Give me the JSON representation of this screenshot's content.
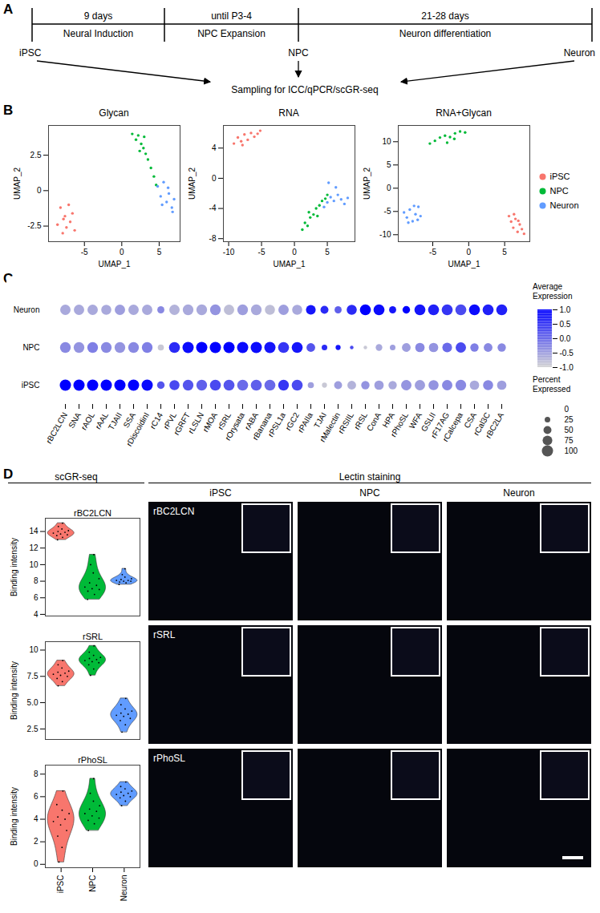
{
  "panel_labels": [
    "A",
    "B",
    "C",
    "D"
  ],
  "timeline": {
    "durations": [
      "9 days",
      "until P3-4",
      "21-28 days"
    ],
    "stages": [
      "Neural Induction",
      "NPC Expansion",
      "Neuron differentiation"
    ],
    "cells": [
      "iPSC",
      "NPC",
      "Neuron"
    ],
    "sampling": "Sampling for ICC/qPCR/scGR-seq"
  },
  "chart_data": [
    {
      "type": "scatter",
      "title": "Glycan",
      "x_label": "UMAP_1",
      "y_label": "UMAP_2",
      "xlim": [
        -9.8,
        7.8
      ],
      "ylim": [
        -3.6,
        4.6
      ],
      "xticks": [
        -5,
        0,
        5
      ],
      "yticks": [
        -2.5,
        0,
        2.5
      ],
      "series": [
        {
          "name": "iPSC",
          "color": "#F8766D",
          "x": [
            -8.6,
            -8.2,
            -7.9,
            -7.6,
            -7.4,
            -7.1,
            -6.9,
            -6.6,
            -6.3,
            -7.8
          ],
          "y": [
            -2.4,
            -1.2,
            -3.0,
            -1.8,
            -2.6,
            -1.0,
            -2.2,
            -1.6,
            -2.8,
            -2.0
          ]
        },
        {
          "name": "NPC",
          "color": "#00BA38",
          "x": [
            1.4,
            1.9,
            2.2,
            2.6,
            2.9,
            3.2,
            3.5,
            3.9,
            4.3,
            2.4,
            3.0,
            4.6
          ],
          "y": [
            4.0,
            3.6,
            3.9,
            3.3,
            3.0,
            2.6,
            2.2,
            1.6,
            1.0,
            2.8,
            3.8,
            0.4
          ]
        },
        {
          "name": "Neuron",
          "color": "#619CFF",
          "x": [
            4.8,
            5.2,
            5.6,
            6.0,
            6.3,
            6.7,
            7.0,
            5.4,
            6.2,
            6.8
          ],
          "y": [
            0.3,
            -0.4,
            0.6,
            -0.8,
            -0.2,
            -1.2,
            -0.6,
            -1.0,
            0.2,
            -1.5
          ]
        }
      ]
    },
    {
      "type": "scatter",
      "title": "RNA",
      "x_label": "UMAP_1",
      "y_label": "UMAP_2",
      "xlim": [
        -10.8,
        9.2
      ],
      "ylim": [
        -8.4,
        7.0
      ],
      "xticks": [
        -10,
        -5,
        0,
        5
      ],
      "yticks": [
        -8,
        -4,
        0,
        4
      ],
      "series": [
        {
          "name": "iPSC",
          "color": "#F8766D",
          "x": [
            -9.2,
            -8.6,
            -8.1,
            -7.6,
            -7.1,
            -6.6,
            -6.1,
            -5.6,
            -5.2,
            -7.9
          ],
          "y": [
            4.6,
            5.4,
            4.9,
            5.8,
            5.1,
            6.0,
            5.5,
            5.9,
            6.3,
            4.4
          ]
        },
        {
          "name": "NPC",
          "color": "#00BA38",
          "x": [
            1.2,
            1.6,
            2.0,
            2.4,
            2.9,
            3.3,
            3.8,
            4.2,
            4.7,
            2.2,
            3.5,
            5.0
          ],
          "y": [
            -6.8,
            -5.9,
            -6.3,
            -5.2,
            -4.8,
            -4.0,
            -3.6,
            -3.0,
            -2.7,
            -4.5,
            -5.0,
            -2.2
          ]
        },
        {
          "name": "Neuron",
          "color": "#619CFF",
          "x": [
            4.5,
            5.0,
            5.5,
            6.0,
            6.6,
            7.1,
            7.6,
            8.1,
            5.2,
            6.3
          ],
          "y": [
            -3.8,
            -3.2,
            -2.5,
            -3.0,
            -2.2,
            -2.8,
            -3.4,
            -2.6,
            -0.6,
            -1.2
          ]
        }
      ]
    },
    {
      "type": "scatter",
      "title": "RNA+Glycan",
      "x_label": "UMAP_1",
      "y_label": "UMAP_2",
      "xlim": [
        -9.8,
        8.5
      ],
      "ylim": [
        -11.5,
        13.5
      ],
      "xticks": [
        -5,
        0,
        5
      ],
      "yticks": [
        -10,
        -5,
        0,
        5,
        10
      ],
      "legend": "right",
      "series": [
        {
          "name": "iPSC",
          "color": "#F8766D",
          "x": [
            5.6,
            5.9,
            6.2,
            6.5,
            6.8,
            7.1,
            7.4,
            7.7,
            6.3,
            6.9
          ],
          "y": [
            -6.0,
            -7.2,
            -8.5,
            -6.6,
            -9.4,
            -7.8,
            -8.8,
            -9.8,
            -5.6,
            -7.0
          ]
        },
        {
          "name": "NPC",
          "color": "#00BA38",
          "x": [
            -5.4,
            -4.7,
            -4.0,
            -3.3,
            -2.6,
            -1.9,
            -1.2,
            -0.5,
            -3.0,
            -2.0
          ],
          "y": [
            9.6,
            10.2,
            10.9,
            11.3,
            11.0,
            11.8,
            12.2,
            12.0,
            9.8,
            10.6
          ]
        },
        {
          "name": "Neuron",
          "color": "#619CFF",
          "x": [
            -9.0,
            -8.6,
            -8.2,
            -7.8,
            -7.4,
            -7.0,
            -6.7,
            -8.4,
            -7.6,
            -7.1
          ],
          "y": [
            -5.2,
            -6.3,
            -4.6,
            -7.1,
            -5.6,
            -4.0,
            -6.0,
            -7.4,
            -3.8,
            -6.8
          ]
        }
      ]
    },
    {
      "type": "dot",
      "categories": [
        "rBC2LCN",
        "SNA",
        "rAOL",
        "rAAL",
        "TJAII",
        "SSA",
        "rDiscoidinI",
        "rC14",
        "rPVL",
        "rGRFT",
        "rLSLN",
        "rMOA",
        "rSRL",
        "rOrysata",
        "rABA",
        "rBanana",
        "rPSL1a",
        "rGC2",
        "rPAIIa",
        "TJAI",
        "rMalectin",
        "rRSIIL",
        "rRSL",
        "ConA",
        "HPA",
        "rPhoSL",
        "WFA",
        "GSLII",
        "rF17AG",
        "rCalcepa",
        "CSA",
        "rCal3C",
        "rBC2LA"
      ],
      "rows": [
        "Neuron",
        "NPC",
        "iPSC"
      ],
      "average_expression": [
        [
          -0.6,
          -0.6,
          -0.6,
          -0.6,
          -0.5,
          -0.6,
          -0.6,
          -0.3,
          -0.7,
          -0.6,
          -0.6,
          -0.4,
          -0.8,
          -0.5,
          -0.6,
          -0.8,
          -0.5,
          -0.6,
          0.8,
          0.6,
          0.1,
          0.6,
          1.0,
          0.9,
          0.8,
          1.0,
          0.8,
          0.7,
          0.5,
          0.3,
          0.9,
          0.7,
          0.7
        ],
        [
          -0.3,
          -0.4,
          -0.2,
          -0.3,
          -0.4,
          -0.3,
          -0.2,
          -0.9,
          0.6,
          0.9,
          1.0,
          1.0,
          1.0,
          0.9,
          0.9,
          0.8,
          0.5,
          0.8,
          0.2,
          0.6,
          0.8,
          0.3,
          -0.9,
          -0.6,
          -0.5,
          -0.5,
          -0.3,
          -0.4,
          0.0,
          0.3,
          -0.2,
          -0.3,
          -0.3
        ],
        [
          1.0,
          1.0,
          1.0,
          1.0,
          1.0,
          1.0,
          0.9,
          0.2,
          0.3,
          0.2,
          0.1,
          0.3,
          0.2,
          0.0,
          0.1,
          0.0,
          0.5,
          0.3,
          -0.5,
          -0.9,
          -0.5,
          -0.7,
          -0.4,
          -0.5,
          -0.6,
          -0.4,
          -0.5,
          -0.4,
          -0.3,
          -0.3,
          -0.6,
          -0.3,
          -0.5
        ]
      ],
      "percent_expressed": [
        [
          85,
          85,
          85,
          80,
          85,
          85,
          85,
          40,
          85,
          90,
          90,
          90,
          85,
          90,
          90,
          80,
          85,
          80,
          75,
          50,
          40,
          80,
          95,
          95,
          40,
          45,
          95,
          95,
          95,
          95,
          95,
          95,
          95
        ],
        [
          90,
          90,
          90,
          90,
          90,
          90,
          90,
          30,
          95,
          100,
          100,
          100,
          100,
          100,
          100,
          100,
          95,
          95,
          60,
          25,
          20,
          10,
          10,
          35,
          25,
          60,
          70,
          70,
          75,
          85,
          55,
          60,
          55
        ],
        [
          100,
          100,
          100,
          100,
          100,
          100,
          100,
          45,
          80,
          90,
          90,
          95,
          95,
          95,
          95,
          95,
          90,
          95,
          30,
          20,
          50,
          60,
          55,
          70,
          55,
          85,
          85,
          80,
          85,
          90,
          70,
          80,
          70
        ]
      ],
      "color_bar": {
        "label": "Average Expression",
        "range": [
          -1,
          1
        ],
        "colors": [
          "lightgrey",
          "blue"
        ],
        "ticks": [
          {
            "value": 1,
            "label": "1.0"
          },
          0.5,
          {
            "value": 0,
            "label": "0.0"
          },
          -0.5,
          {
            "value": -1,
            "label": "-1.0"
          }
        ]
      },
      "size_legend": {
        "label": "Percent Expressed",
        "range": [
          0,
          100
        ],
        "ticks": [
          0,
          25,
          50,
          75,
          100
        ]
      }
    },
    {
      "type": "violin",
      "title": "rBC2LCN",
      "y_label": "Binding intensity",
      "categories": [
        "iPSC",
        "NPC",
        "Neuron"
      ],
      "colors": [
        "#F8766D",
        "#00BA38",
        "#619CFF"
      ],
      "ylim": [
        3.8,
        15.6
      ],
      "yticks": [
        4,
        6,
        8,
        10,
        12,
        14
      ],
      "tick_labels": "y",
      "values": [
        [
          13.0,
          13.3,
          13.5,
          13.6,
          13.7,
          13.8,
          13.9,
          14.0,
          14.1,
          14.3,
          14.6,
          15.0
        ],
        [
          5.8,
          6.4,
          6.8,
          7.0,
          7.1,
          7.3,
          7.5,
          7.8,
          8.3,
          9.0,
          10.0,
          11.2
        ],
        [
          7.6,
          7.8,
          7.9,
          8.0,
          8.0,
          8.1,
          8.1,
          8.2,
          8.3,
          8.5,
          8.8,
          9.5
        ]
      ]
    },
    {
      "type": "violin",
      "title": "rSRL",
      "y_label": "Binding intensity",
      "categories": [
        "iPSC",
        "NPC",
        "Neuron"
      ],
      "colors": [
        "#F8766D",
        "#00BA38",
        "#619CFF"
      ],
      "ylim": [
        1.5,
        10.8
      ],
      "yticks": [
        2.5,
        {
          "value": 5,
          "label": "5.0"
        },
        7.5,
        10
      ],
      "tick_labels": "y",
      "values": [
        [
          6.6,
          7.0,
          7.3,
          7.5,
          7.6,
          7.7,
          7.8,
          7.9,
          8.0,
          8.3,
          8.6,
          9.0
        ],
        [
          7.6,
          8.2,
          8.6,
          8.8,
          8.9,
          9.0,
          9.1,
          9.2,
          9.3,
          9.5,
          9.8,
          10.4
        ],
        [
          2.2,
          2.9,
          3.3,
          3.5,
          3.7,
          3.8,
          3.9,
          4.0,
          4.2,
          4.4,
          4.8,
          5.4
        ]
      ]
    },
    {
      "type": "violin",
      "title": "rPhoSL",
      "y_label": "Binding intensity",
      "categories": [
        "iPSC",
        "NPC",
        "Neuron"
      ],
      "colors": [
        "#F8766D",
        "#00BA38",
        "#619CFF"
      ],
      "ylim": [
        -0.3,
        8.8
      ],
      "yticks": [
        0,
        2,
        4,
        6,
        8
      ],
      "values": [
        [
          0.2,
          1.5,
          2.5,
          3.0,
          3.5,
          3.8,
          4.0,
          4.2,
          4.5,
          4.8,
          5.3,
          6.5
        ],
        [
          3.0,
          3.6,
          3.9,
          4.1,
          4.3,
          4.5,
          4.7,
          4.9,
          5.2,
          5.6,
          6.3,
          7.6
        ],
        [
          5.2,
          5.6,
          5.9,
          6.0,
          6.1,
          6.2,
          6.3,
          6.4,
          6.5,
          6.7,
          6.9,
          7.3
        ]
      ]
    }
  ],
  "staining": {
    "header_left": "scGR-seq",
    "header_right": "Lectin staining",
    "columns": [
      "iPSC",
      "NPC",
      "Neuron"
    ],
    "rows": [
      "rBC2LCN",
      "rSRL",
      "rPhoSL"
    ]
  }
}
